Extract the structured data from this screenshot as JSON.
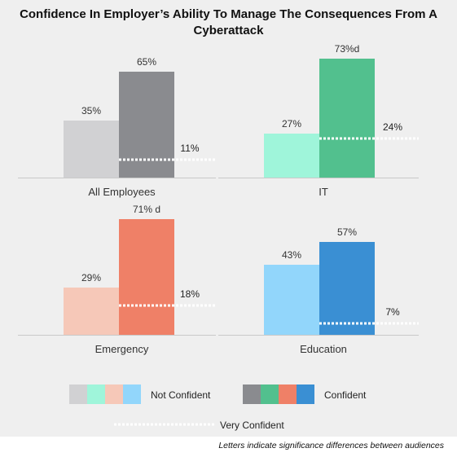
{
  "title": "Confidence In Employer’s Ability To Manage The Consequences From A Cyberattack",
  "footnote": "Letters indicate significance differences between audiences",
  "legend": {
    "not_confident": "Not Confident",
    "confident": "Confident",
    "very_confident": "Very Confident"
  },
  "chart_data": [
    {
      "type": "bar",
      "panel": "All Employees",
      "categories": [
        "Not Confident",
        "Confident"
      ],
      "values": [
        35,
        65
      ],
      "labels": [
        "35%",
        "65%"
      ],
      "very_confident": 11,
      "very_confident_label": "11%",
      "colors": [
        "#d1d1d3",
        "#8a8b8f"
      ],
      "ylim": [
        0,
        100
      ]
    },
    {
      "type": "bar",
      "panel": "IT",
      "categories": [
        "Not Confident",
        "Confident"
      ],
      "values": [
        27,
        73
      ],
      "labels": [
        "27%",
        "73%d"
      ],
      "very_confident": 24,
      "very_confident_label": "24%",
      "colors": [
        "#9ff5da",
        "#52c08e"
      ],
      "ylim": [
        0,
        100
      ]
    },
    {
      "type": "bar",
      "panel": "Emergency",
      "categories": [
        "Not Confident",
        "Confident"
      ],
      "values": [
        29,
        71
      ],
      "labels": [
        "29%",
        "71% d"
      ],
      "very_confident": 18,
      "very_confident_label": "18%",
      "colors": [
        "#f6c8b8",
        "#ef8067"
      ],
      "ylim": [
        0,
        100
      ]
    },
    {
      "type": "bar",
      "panel": "Education",
      "categories": [
        "Not Confident",
        "Confident"
      ],
      "values": [
        43,
        57
      ],
      "labels": [
        "43%",
        "57%"
      ],
      "very_confident": 7,
      "very_confident_label": "7%",
      "colors": [
        "#92d6fb",
        "#3a8fd3"
      ],
      "ylim": [
        0,
        100
      ]
    }
  ]
}
